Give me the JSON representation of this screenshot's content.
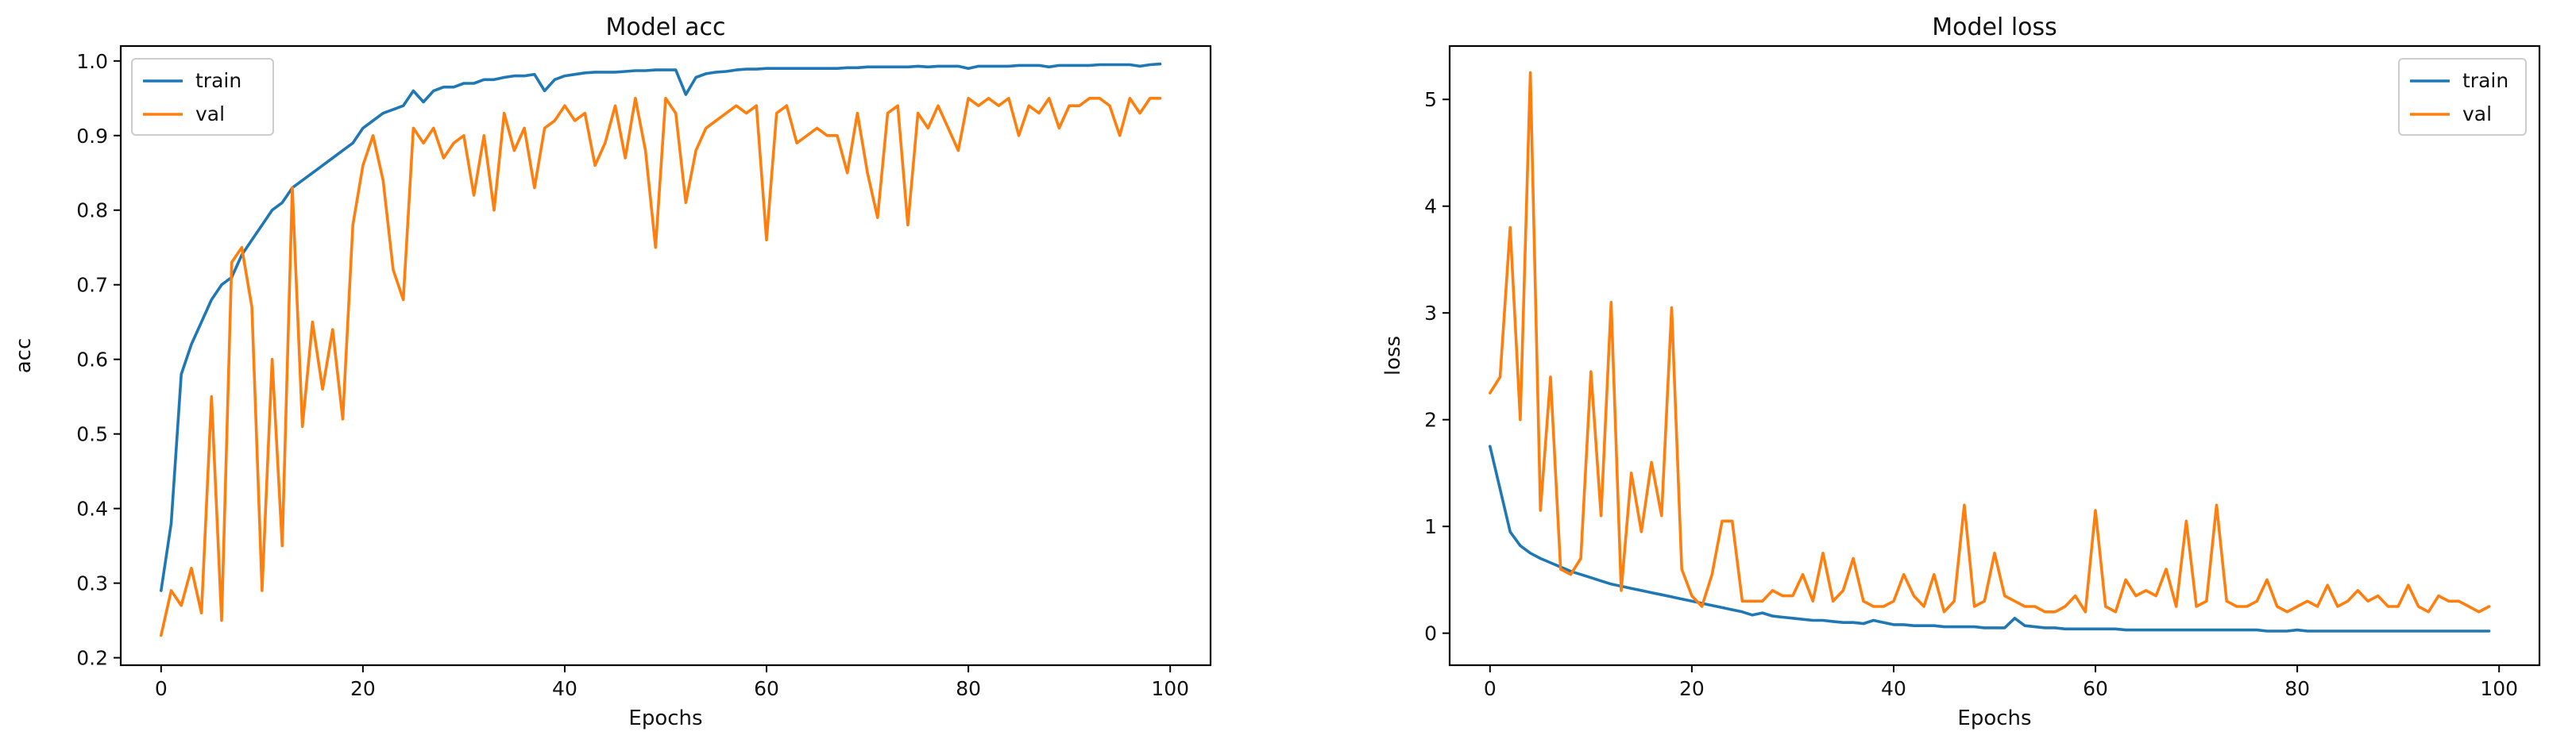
{
  "chart_data": [
    {
      "type": "line",
      "title": "Model acc",
      "xlabel": "Epochs",
      "ylabel": "acc",
      "xlim": [
        -4,
        104
      ],
      "ylim": [
        0.19,
        1.02
      ],
      "xticks": [
        0,
        20,
        40,
        60,
        80,
        100
      ],
      "yticks": [
        0.2,
        0.3,
        0.4,
        0.5,
        0.6,
        0.7,
        0.8,
        0.9,
        1.0
      ],
      "ytick_labels": [
        "0.2",
        "0.3",
        "0.4",
        "0.5",
        "0.6",
        "0.7",
        "0.8",
        "0.9",
        "1.0"
      ],
      "grid": false,
      "legend": "upper-left",
      "series": [
        {
          "name": "train",
          "color": "#1f77b4",
          "values": [
            0.29,
            0.38,
            0.58,
            0.62,
            0.65,
            0.68,
            0.7,
            0.71,
            0.74,
            0.76,
            0.78,
            0.8,
            0.81,
            0.83,
            0.84,
            0.85,
            0.86,
            0.87,
            0.88,
            0.89,
            0.91,
            0.92,
            0.93,
            0.935,
            0.94,
            0.96,
            0.945,
            0.96,
            0.965,
            0.965,
            0.97,
            0.97,
            0.975,
            0.975,
            0.978,
            0.98,
            0.98,
            0.982,
            0.96,
            0.975,
            0.98,
            0.982,
            0.984,
            0.985,
            0.985,
            0.985,
            0.986,
            0.987,
            0.987,
            0.988,
            0.988,
            0.988,
            0.955,
            0.978,
            0.983,
            0.985,
            0.986,
            0.988,
            0.989,
            0.989,
            0.99,
            0.99,
            0.99,
            0.99,
            0.99,
            0.99,
            0.99,
            0.99,
            0.991,
            0.991,
            0.992,
            0.992,
            0.992,
            0.992,
            0.992,
            0.993,
            0.992,
            0.993,
            0.993,
            0.993,
            0.99,
            0.993,
            0.993,
            0.993,
            0.993,
            0.994,
            0.994,
            0.994,
            0.992,
            0.994,
            0.994,
            0.994,
            0.994,
            0.995,
            0.995,
            0.995,
            0.995,
            0.993,
            0.995,
            0.996
          ]
        },
        {
          "name": "val",
          "color": "#ff7f0e",
          "values": [
            0.23,
            0.29,
            0.27,
            0.32,
            0.26,
            0.55,
            0.25,
            0.73,
            0.75,
            0.67,
            0.29,
            0.6,
            0.35,
            0.83,
            0.51,
            0.65,
            0.56,
            0.64,
            0.52,
            0.78,
            0.86,
            0.9,
            0.84,
            0.72,
            0.68,
            0.91,
            0.89,
            0.91,
            0.87,
            0.89,
            0.9,
            0.82,
            0.9,
            0.8,
            0.93,
            0.88,
            0.91,
            0.83,
            0.91,
            0.92,
            0.94,
            0.92,
            0.93,
            0.86,
            0.89,
            0.94,
            0.87,
            0.95,
            0.88,
            0.75,
            0.95,
            0.93,
            0.81,
            0.88,
            0.91,
            0.92,
            0.93,
            0.94,
            0.93,
            0.94,
            0.76,
            0.93,
            0.94,
            0.89,
            0.9,
            0.91,
            0.9,
            0.9,
            0.85,
            0.93,
            0.85,
            0.79,
            0.93,
            0.94,
            0.78,
            0.93,
            0.91,
            0.94,
            0.91,
            0.88,
            0.95,
            0.94,
            0.95,
            0.94,
            0.95,
            0.9,
            0.94,
            0.93,
            0.95,
            0.91,
            0.94,
            0.94,
            0.95,
            0.95,
            0.94,
            0.9,
            0.95,
            0.93,
            0.95,
            0.95
          ]
        }
      ]
    },
    {
      "type": "line",
      "title": "Model loss",
      "xlabel": "Epochs",
      "ylabel": "loss",
      "xlim": [
        -4,
        104
      ],
      "ylim": [
        -0.3,
        5.5
      ],
      "xticks": [
        0,
        20,
        40,
        60,
        80,
        100
      ],
      "yticks": [
        0,
        1,
        2,
        3,
        4,
        5
      ],
      "ytick_labels": [
        "0",
        "1",
        "2",
        "3",
        "4",
        "5"
      ],
      "grid": false,
      "legend": "upper-right",
      "series": [
        {
          "name": "train",
          "color": "#1f77b4",
          "values": [
            1.75,
            1.35,
            0.95,
            0.82,
            0.75,
            0.7,
            0.66,
            0.62,
            0.58,
            0.55,
            0.52,
            0.49,
            0.46,
            0.44,
            0.42,
            0.4,
            0.38,
            0.36,
            0.34,
            0.32,
            0.3,
            0.28,
            0.26,
            0.24,
            0.22,
            0.2,
            0.17,
            0.19,
            0.16,
            0.15,
            0.14,
            0.13,
            0.12,
            0.12,
            0.11,
            0.1,
            0.1,
            0.09,
            0.12,
            0.1,
            0.08,
            0.08,
            0.07,
            0.07,
            0.07,
            0.06,
            0.06,
            0.06,
            0.06,
            0.05,
            0.05,
            0.05,
            0.14,
            0.07,
            0.06,
            0.05,
            0.05,
            0.04,
            0.04,
            0.04,
            0.04,
            0.04,
            0.04,
            0.03,
            0.03,
            0.03,
            0.03,
            0.03,
            0.03,
            0.03,
            0.03,
            0.03,
            0.03,
            0.03,
            0.03,
            0.03,
            0.03,
            0.02,
            0.02,
            0.02,
            0.03,
            0.02,
            0.02,
            0.02,
            0.02,
            0.02,
            0.02,
            0.02,
            0.02,
            0.02,
            0.02,
            0.02,
            0.02,
            0.02,
            0.02,
            0.02,
            0.02,
            0.02,
            0.02,
            0.02
          ]
        },
        {
          "name": "val",
          "color": "#ff7f0e",
          "values": [
            2.25,
            2.4,
            3.8,
            2.0,
            5.25,
            1.15,
            2.4,
            0.6,
            0.55,
            0.7,
            2.45,
            1.1,
            3.1,
            0.4,
            1.5,
            0.95,
            1.6,
            1.1,
            3.05,
            0.6,
            0.35,
            0.25,
            0.55,
            1.05,
            1.05,
            0.3,
            0.3,
            0.3,
            0.4,
            0.35,
            0.35,
            0.55,
            0.3,
            0.75,
            0.3,
            0.4,
            0.7,
            0.3,
            0.25,
            0.25,
            0.3,
            0.55,
            0.35,
            0.25,
            0.55,
            0.2,
            0.3,
            1.2,
            0.25,
            0.3,
            0.75,
            0.35,
            0.3,
            0.25,
            0.25,
            0.2,
            0.2,
            0.25,
            0.35,
            0.2,
            1.15,
            0.25,
            0.2,
            0.5,
            0.35,
            0.4,
            0.35,
            0.6,
            0.25,
            1.05,
            0.25,
            0.3,
            1.2,
            0.3,
            0.25,
            0.25,
            0.3,
            0.5,
            0.25,
            0.2,
            0.25,
            0.3,
            0.25,
            0.45,
            0.25,
            0.3,
            0.4,
            0.3,
            0.35,
            0.25,
            0.25,
            0.45,
            0.25,
            0.2,
            0.35,
            0.3,
            0.3,
            0.25,
            0.2,
            0.25
          ]
        }
      ]
    }
  ]
}
